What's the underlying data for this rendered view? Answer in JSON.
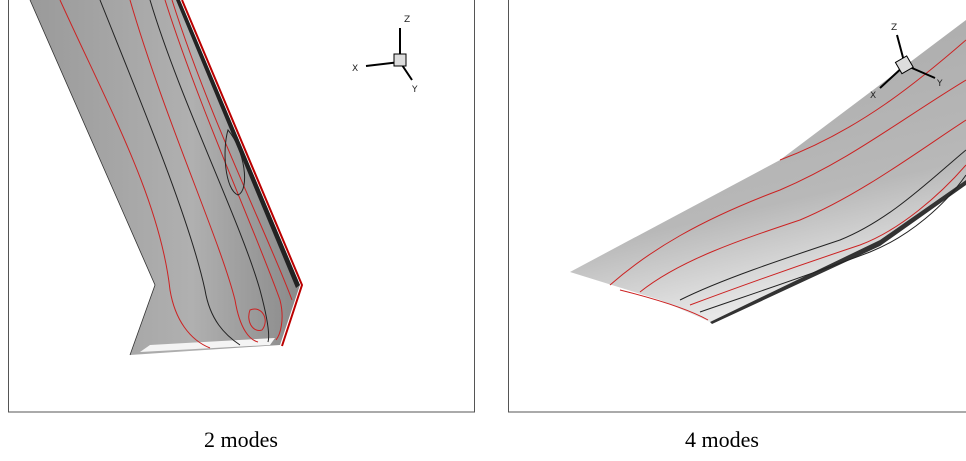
{
  "panels": [
    {
      "caption": "2 modes",
      "axes": {
        "x": "X",
        "y": "Y",
        "z": "Z"
      }
    },
    {
      "caption": "4 modes",
      "axes": {
        "x": "X",
        "y": "Y",
        "z": "Z"
      }
    }
  ]
}
